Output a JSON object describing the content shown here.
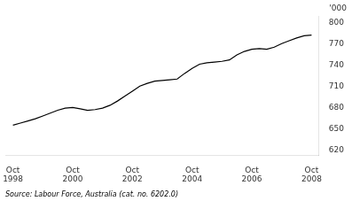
{
  "chart_data": {
    "type": "line",
    "ylabel": "'000",
    "annotations": [
      "Source: Labour Force, Australia (cat. no. 6202.0)"
    ],
    "x": [
      1998.75,
      1999.0,
      1999.25,
      1999.5,
      1999.75,
      2000.0,
      2000.25,
      2000.5,
      2000.75,
      2001.0,
      2001.25,
      2001.5,
      2001.75,
      2002.0,
      2002.25,
      2002.5,
      2002.75,
      2003.0,
      2003.25,
      2003.5,
      2003.75,
      2004.0,
      2004.25,
      2004.5,
      2004.75,
      2005.0,
      2005.25,
      2005.5,
      2005.75,
      2006.0,
      2006.25,
      2006.5,
      2006.75,
      2007.0,
      2007.25,
      2007.5,
      2007.75,
      2008.0,
      2008.25,
      2008.5,
      2008.75
    ],
    "values": [
      655,
      658,
      661,
      664,
      668,
      672,
      676,
      679,
      680,
      678,
      676,
      677,
      679,
      683,
      689,
      696,
      703,
      710,
      714,
      717,
      718,
      719,
      720,
      728,
      735,
      741,
      743,
      744,
      745,
      747,
      754,
      759,
      762,
      763,
      762,
      765,
      770,
      774,
      778,
      781,
      782
    ],
    "color": "#000000",
    "xlim": [
      1998.5,
      2009.0
    ],
    "xticks": [
      {
        "value": 1998.75,
        "label": "Oct\n1998"
      },
      {
        "value": 2000.75,
        "label": "Oct\n2000"
      },
      {
        "value": 2002.75,
        "label": "Oct\n2002"
      },
      {
        "value": 2004.75,
        "label": "Oct\n2004"
      },
      {
        "value": 2006.75,
        "label": "Oct\n2006"
      },
      {
        "value": 2008.75,
        "label": "Oct\n2008"
      }
    ],
    "ylim": [
      612,
      808
    ],
    "yticks": [
      620,
      650,
      680,
      710,
      740,
      770,
      800
    ],
    "grid": false
  }
}
